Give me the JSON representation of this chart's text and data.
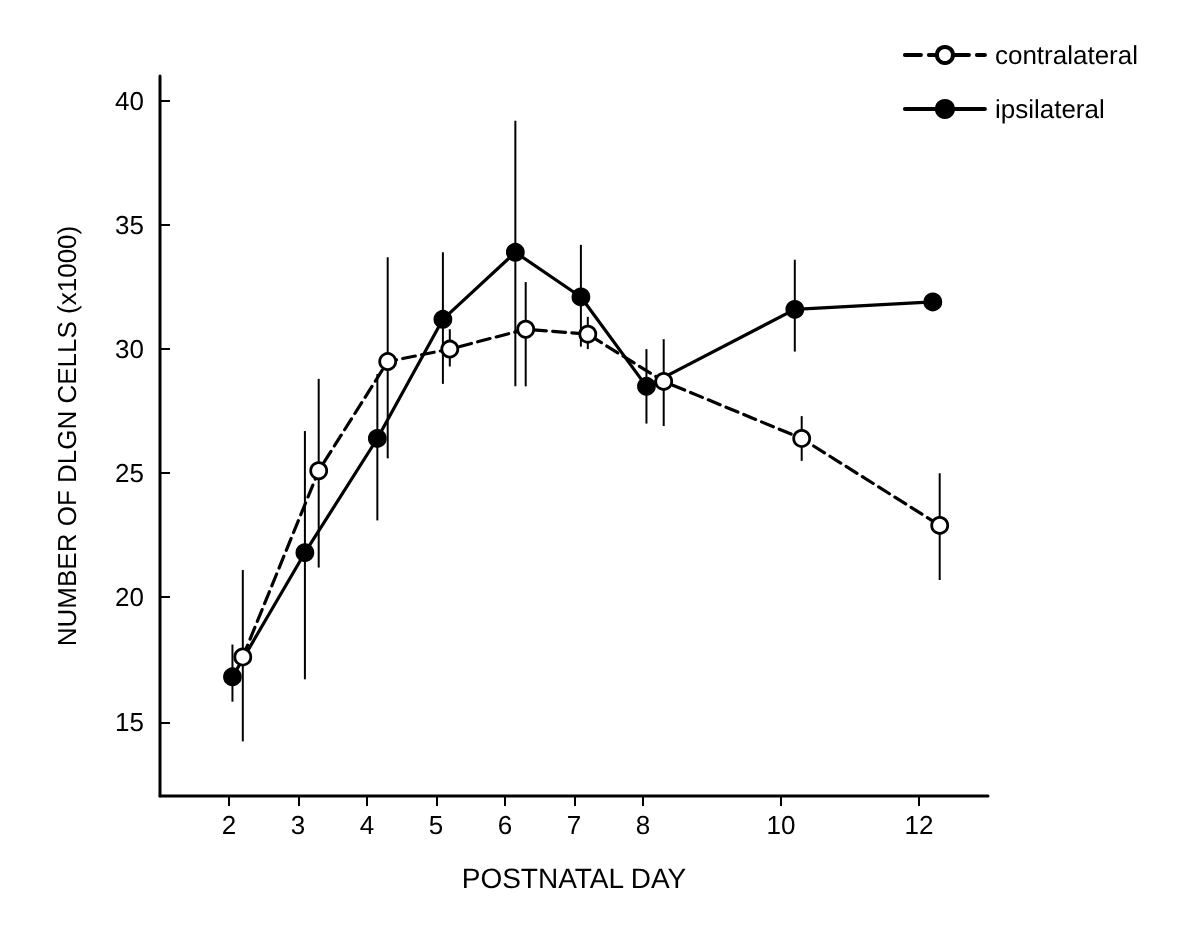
{
  "chart_data": {
    "type": "line",
    "xlabel": "POSTNATAL DAY",
    "ylabel": "NUMBER OF DLGN CELLS (x1000)",
    "xlim": [
      1,
      13
    ],
    "xticks": [
      2,
      3,
      4,
      5,
      6,
      7,
      8,
      10,
      12
    ],
    "ylim": [
      12,
      41
    ],
    "yticks": [
      15,
      20,
      25,
      30,
      35,
      40
    ],
    "grid": false,
    "legend": "top right",
    "marker": "circle",
    "series": [
      {
        "name": "contralateral",
        "color": "#000000",
        "line_style": "dashed",
        "x": [
          2.2,
          3.3,
          4.3,
          5.2,
          6.3,
          7.2,
          8.3,
          10.3,
          12.3
        ],
        "values": [
          17.6,
          25.1,
          29.5,
          30.0,
          30.8,
          30.6,
          28.7,
          26.4,
          22.9
        ],
        "errors": [
          [
            14.2,
            21.1
          ],
          [
            21.2,
            28.8
          ],
          [
            25.6,
            33.7
          ],
          [
            29.3,
            30.8
          ],
          [
            28.5,
            32.7
          ],
          [
            30.0,
            31.3
          ],
          [
            26.9,
            30.4
          ],
          [
            25.5,
            27.3
          ],
          [
            20.7,
            25.0
          ]
        ]
      },
      {
        "name": "ipsilateral",
        "color": "#000000",
        "line_style": "solid",
        "x": [
          2.05,
          3.1,
          4.15,
          5.1,
          6.15,
          7.1,
          8.05,
          10.2,
          12.2
        ],
        "values": [
          16.8,
          21.8,
          26.4,
          31.2,
          33.9,
          32.1,
          28.5,
          31.6,
          31.9
        ],
        "errors": [
          [
            15.8,
            18.1
          ],
          [
            16.7,
            26.7
          ],
          [
            23.1,
            29.0
          ],
          [
            28.6,
            33.9
          ],
          [
            28.5,
            39.2
          ],
          [
            30.1,
            34.2
          ],
          [
            27.0,
            30.0
          ],
          [
            29.9,
            33.6
          ],
          null
        ]
      }
    ]
  }
}
